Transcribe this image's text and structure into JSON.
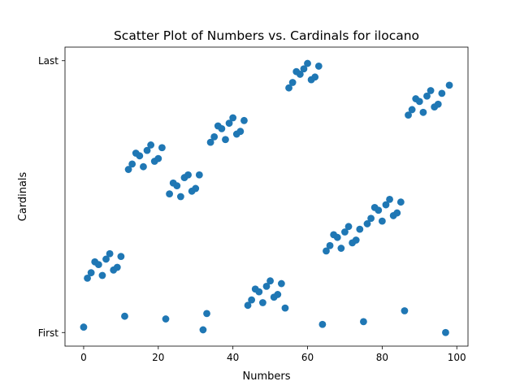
{
  "chart_data": {
    "type": "scatter",
    "title": "Scatter Plot of Numbers vs. Cardinals for ilocano",
    "xlabel": "Numbers",
    "ylabel": "Cardinals",
    "xlim": [
      -5,
      103
    ],
    "ylim": [
      -0.05,
      1.05
    ],
    "x_ticks": [
      0,
      20,
      40,
      60,
      80,
      100
    ],
    "x_tick_labels": [
      "0",
      "20",
      "40",
      "60",
      "80",
      "100"
    ],
    "y_ticks": [
      0,
      1
    ],
    "y_tick_labels": [
      "First",
      "Last"
    ],
    "grid": false,
    "legend": "none",
    "color": "#1f77b4",
    "series": [
      {
        "points": [
          [
            0,
            0.02
          ],
          [
            1,
            0.2
          ],
          [
            2,
            0.22
          ],
          [
            3,
            0.26
          ],
          [
            4,
            0.25
          ],
          [
            5,
            0.21
          ],
          [
            6,
            0.27
          ],
          [
            7,
            0.29
          ],
          [
            8,
            0.23
          ],
          [
            9,
            0.24
          ],
          [
            10,
            0.28
          ],
          [
            11,
            0.06
          ],
          [
            12,
            0.6
          ],
          [
            13,
            0.62
          ],
          [
            14,
            0.66
          ],
          [
            15,
            0.65
          ],
          [
            16,
            0.61
          ],
          [
            17,
            0.67
          ],
          [
            18,
            0.69
          ],
          [
            19,
            0.63
          ],
          [
            20,
            0.64
          ],
          [
            21,
            0.68
          ],
          [
            22,
            0.05
          ],
          [
            23,
            0.51
          ],
          [
            24,
            0.55
          ],
          [
            25,
            0.54
          ],
          [
            26,
            0.5
          ],
          [
            27,
            0.57
          ],
          [
            28,
            0.58
          ],
          [
            29,
            0.52
          ],
          [
            30,
            0.53
          ],
          [
            31,
            0.58
          ],
          [
            32,
            0.01
          ],
          [
            33,
            0.07
          ],
          [
            34,
            0.7
          ],
          [
            35,
            0.72
          ],
          [
            36,
            0.76
          ],
          [
            37,
            0.75
          ],
          [
            38,
            0.71
          ],
          [
            39,
            0.77
          ],
          [
            40,
            0.79
          ],
          [
            41,
            0.73
          ],
          [
            42,
            0.74
          ],
          [
            43,
            0.78
          ],
          [
            44,
            0.1
          ],
          [
            45,
            0.12
          ],
          [
            46,
            0.16
          ],
          [
            47,
            0.15
          ],
          [
            48,
            0.11
          ],
          [
            49,
            0.17
          ],
          [
            50,
            0.19
          ],
          [
            51,
            0.13
          ],
          [
            52,
            0.14
          ],
          [
            53,
            0.18
          ],
          [
            54,
            0.09
          ],
          [
            55,
            0.9
          ],
          [
            56,
            0.92
          ],
          [
            57,
            0.96
          ],
          [
            58,
            0.95
          ],
          [
            59,
            0.97
          ],
          [
            60,
            0.99
          ],
          [
            61,
            0.93
          ],
          [
            62,
            0.94
          ],
          [
            63,
            0.98
          ],
          [
            64,
            0.03
          ],
          [
            65,
            0.3
          ],
          [
            66,
            0.32
          ],
          [
            67,
            0.36
          ],
          [
            68,
            0.35
          ],
          [
            69,
            0.31
          ],
          [
            70,
            0.37
          ],
          [
            71,
            0.39
          ],
          [
            72,
            0.33
          ],
          [
            73,
            0.34
          ],
          [
            74,
            0.38
          ],
          [
            75,
            0.04
          ],
          [
            76,
            0.4
          ],
          [
            77,
            0.42
          ],
          [
            78,
            0.46
          ],
          [
            79,
            0.45
          ],
          [
            80,
            0.41
          ],
          [
            81,
            0.47
          ],
          [
            82,
            0.49
          ],
          [
            83,
            0.43
          ],
          [
            84,
            0.44
          ],
          [
            85,
            0.48
          ],
          [
            86,
            0.08
          ],
          [
            87,
            0.8
          ],
          [
            88,
            0.82
          ],
          [
            89,
            0.86
          ],
          [
            90,
            0.85
          ],
          [
            91,
            0.81
          ],
          [
            92,
            0.87
          ],
          [
            93,
            0.89
          ],
          [
            94,
            0.83
          ],
          [
            95,
            0.84
          ],
          [
            96,
            0.88
          ],
          [
            97,
            0.0
          ],
          [
            98,
            0.91
          ]
        ]
      }
    ]
  }
}
